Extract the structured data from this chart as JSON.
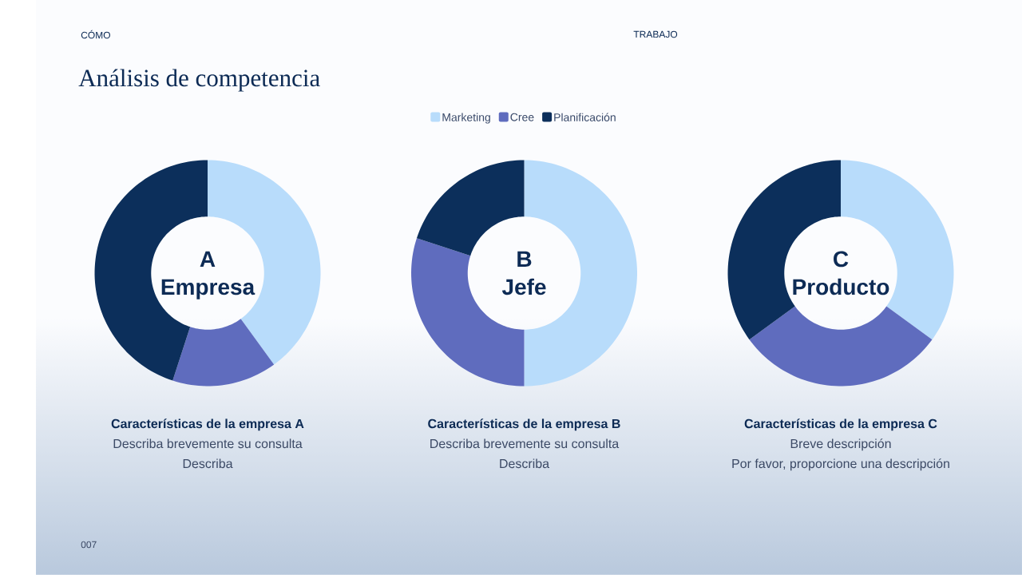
{
  "chart_data": [
    {
      "type": "other",
      "title": "Análisis de competencia",
      "annotations": [
        "CÓMO",
        "TRABAJO",
        "007"
      ]
    },
    {
      "type": "donut",
      "title": "Características de la empresa A",
      "categories": [
        null,
        null,
        null
      ],
      "values": [
        40,
        15,
        45
      ],
      "colors": [
        "#b8dcfb",
        "#5f6cbe",
        "#0c2f5b"
      ],
      "annotations": [
        "A",
        "Empresa",
        "Describa brevemente su consulta",
        "Describa"
      ]
    },
    {
      "type": "donut",
      "title": "Características de la empresa B",
      "categories": [
        "Marketing",
        "Cree",
        "Planificación"
      ],
      "values": [
        50,
        30,
        20
      ],
      "colors": [
        "#b8dcfb",
        "#5f6cbe",
        "#0c2f5b"
      ],
      "legend": "top",
      "annotations": [
        "B",
        "Jefe",
        "Describa brevemente su consulta",
        "Describa"
      ]
    },
    {
      "type": "donut",
      "title": "Características de la empresa C",
      "categories": [
        null,
        null,
        null
      ],
      "values": [
        35,
        30,
        35
      ],
      "colors": [
        "#b8dcfb",
        "#5f6cbe",
        "#0c2f5b"
      ],
      "annotations": [
        "C",
        "Producto",
        "Breve descripción",
        "Por favor, proporcione una descripción"
      ]
    }
  ]
}
